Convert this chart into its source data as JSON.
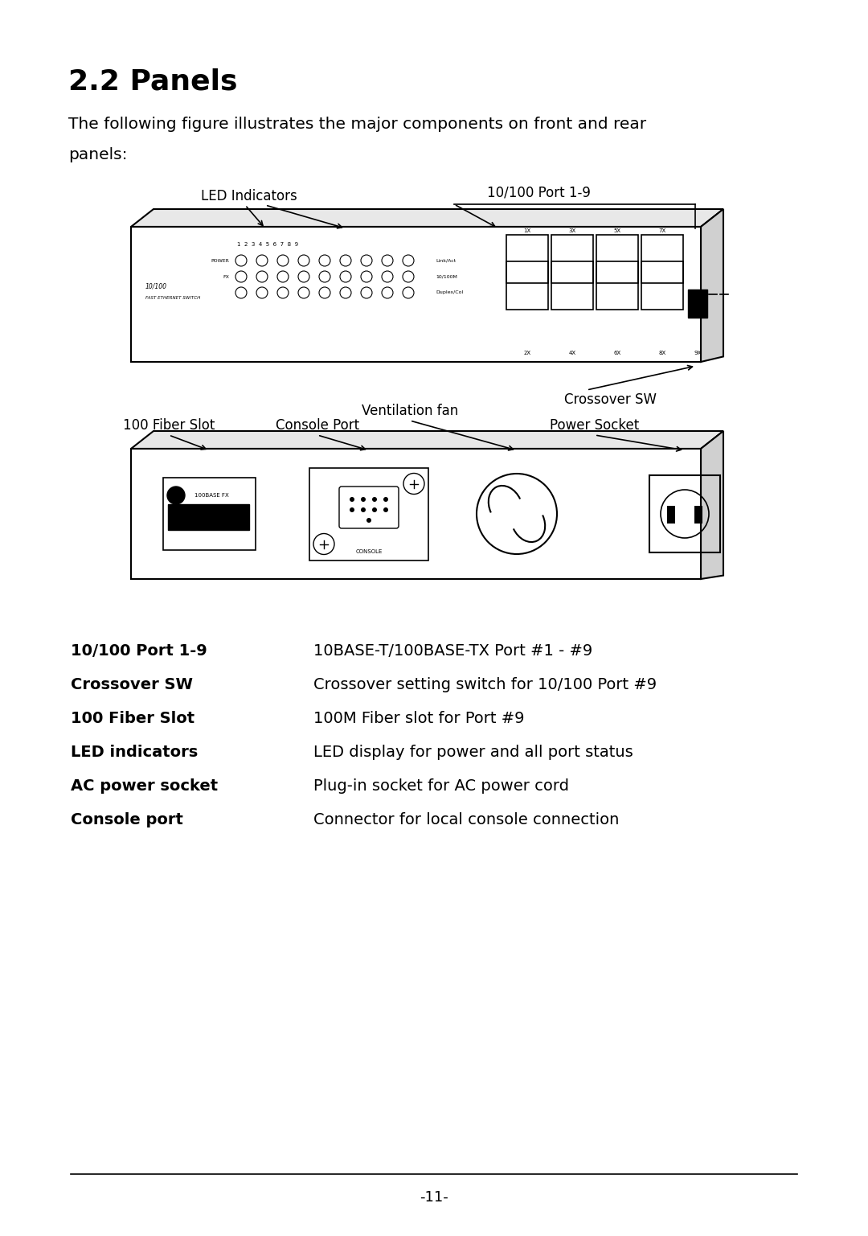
{
  "title": "2.2 Panels",
  "intro_text_line1": "The following figure illustrates the major components on front and rear",
  "intro_text_line2": "panels:",
  "bg_color": "#ffffff",
  "text_color": "#000000",
  "table_items": [
    {
      "bold": "10/100 Port 1-9",
      "normal": "10BASE-T/100BASE-TX Port #1 - #9"
    },
    {
      "bold": "Crossover SW",
      "normal": "Crossover setting switch for 10/100 Port #9"
    },
    {
      "bold": "100 Fiber Slot",
      "normal": "100M Fiber slot for Port #9"
    },
    {
      "bold": "LED indicators",
      "normal": "LED display for power and all port status"
    },
    {
      "bold": "AC power socket",
      "normal": "Plug-in socket for AC power cord"
    },
    {
      "bold": "Console port",
      "normal": "Connector for local console connection"
    }
  ],
  "page_number": "-11-"
}
